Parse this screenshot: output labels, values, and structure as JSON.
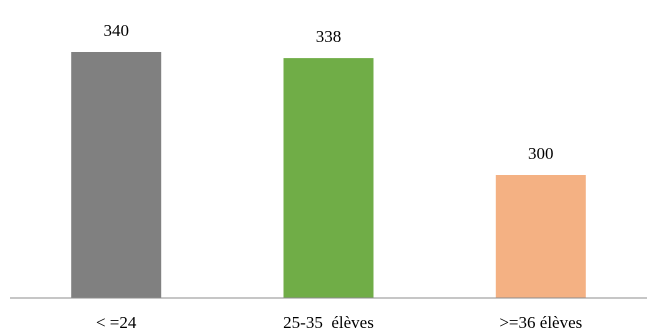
{
  "chart_data": {
    "type": "bar",
    "categories": [
      "< =24",
      "25-35  élèves",
      ">=36 élèves"
    ],
    "values": [
      340,
      338,
      300
    ],
    "colors": [
      "#808080",
      "#70AD47",
      "#F4B183"
    ],
    "title": "",
    "xlabel": "",
    "ylabel": "",
    "ylim": [
      260,
      345
    ],
    "grid": false,
    "legend": "none"
  }
}
